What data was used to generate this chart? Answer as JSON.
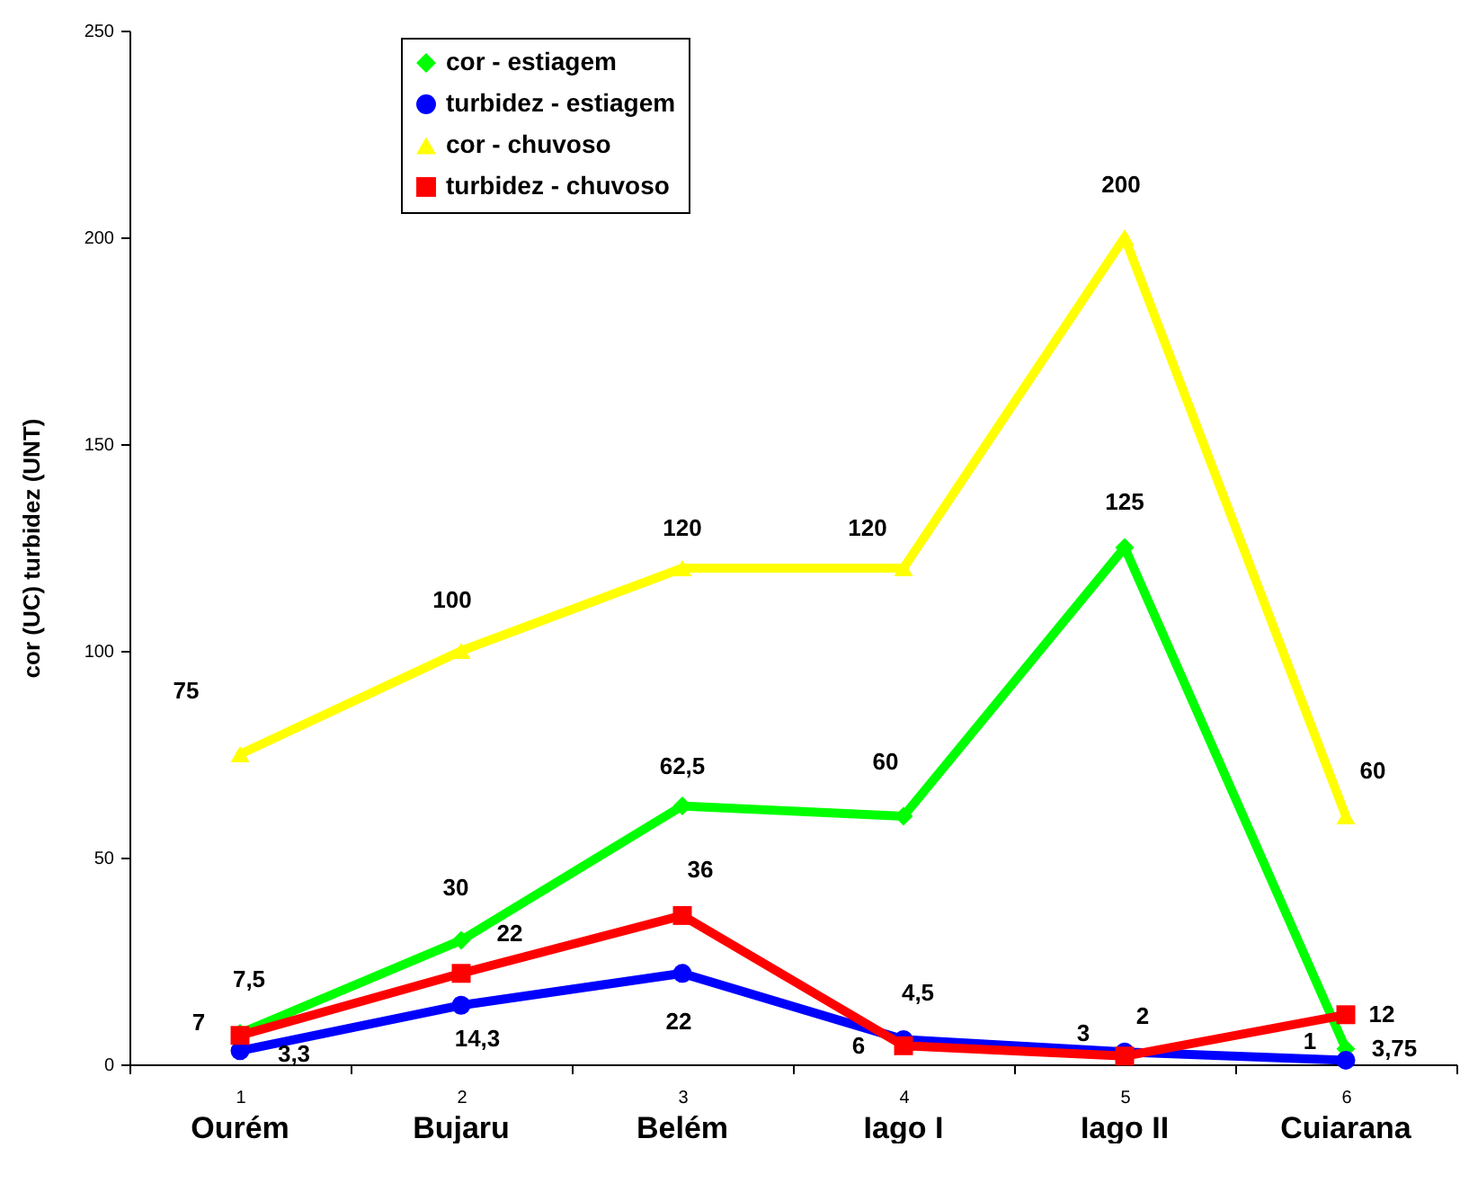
{
  "chart_data": {
    "type": "line",
    "ylabel": "cor (UC)  turbidez (UNT)",
    "categories": [
      "1",
      "2",
      "3",
      "4",
      "5",
      "6"
    ],
    "ylim": [
      0,
      250
    ],
    "yticks": [
      0,
      50,
      100,
      150,
      200,
      250
    ],
    "legend": "top left",
    "line_style": "solid",
    "series": [
      {
        "name": "cor - estiagem",
        "color": "#00ff00",
        "marker": "diamond",
        "values": [
          7.5,
          30,
          62.5,
          60,
          125,
          3.75
        ],
        "value_labels": [
          "7,5",
          "30",
          "62,5",
          "60",
          "125",
          "3,75"
        ]
      },
      {
        "name": "turbidez - estiagem",
        "color": "#0000ff",
        "marker": "circle",
        "values": [
          3.3,
          14.3,
          22,
          6,
          3,
          1
        ],
        "value_labels": [
          "3,3",
          "14,3",
          "22",
          "6",
          "3",
          "1"
        ]
      },
      {
        "name": "cor - chuvoso",
        "color": "#ffff00",
        "marker": "triangle",
        "values": [
          75,
          100,
          120,
          120,
          200,
          60
        ],
        "value_labels": [
          "75",
          "100",
          "120",
          "120",
          "200",
          "60"
        ]
      },
      {
        "name": "turbidez - chuvoso",
        "color": "#ff0000",
        "marker": "square",
        "values": [
          7,
          22,
          36,
          4.5,
          2,
          12
        ],
        "value_labels": [
          "7",
          "22",
          "36",
          "4,5",
          "2",
          "12"
        ]
      }
    ],
    "annotations": [
      "Ourém",
      "Bujaru",
      "Belém",
      "Iago I",
      "Iago II",
      "Cuiarana"
    ]
  }
}
